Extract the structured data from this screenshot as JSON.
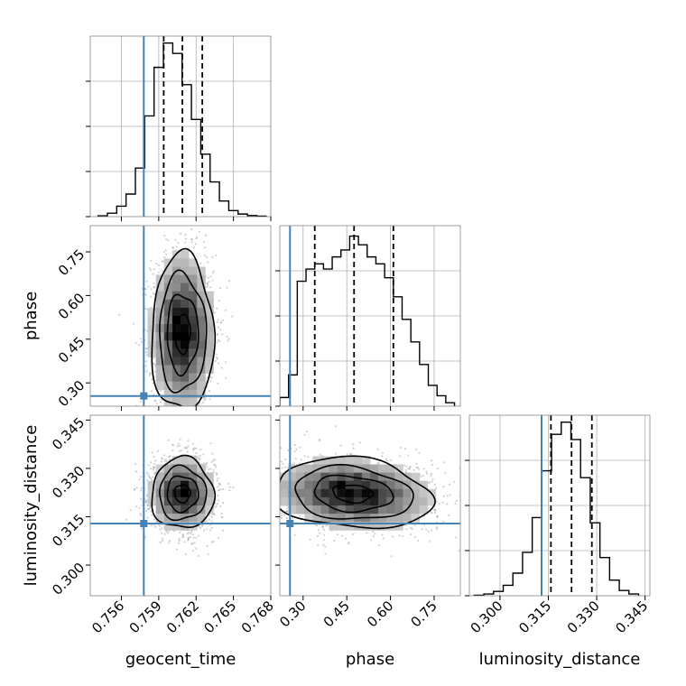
{
  "chart_data": {
    "type": "corner",
    "parameters": [
      {
        "name": "geocent_time",
        "label": "geocent_time",
        "lim": [
          0.7535,
          0.768
        ],
        "ticks": [
          "0.756",
          "0.759",
          "0.762",
          "0.765",
          "0.768"
        ],
        "truth": 0.7578,
        "quantiles": [
          0.7594,
          0.7609,
          0.7625
        ]
      },
      {
        "name": "phase",
        "label": "phase",
        "lim": [
          0.22,
          0.84
        ],
        "ticks": [
          "0.30",
          "0.45",
          "0.60",
          "0.75"
        ],
        "truth": 0.255,
        "quantiles": [
          0.34,
          0.475,
          0.61
        ]
      },
      {
        "name": "luminosity_distance",
        "label": "luminosity_distance",
        "lim": [
          0.2905,
          0.3465
        ],
        "ticks": [
          "0.300",
          "0.315",
          "0.330",
          "0.345"
        ],
        "truth": 0.3129,
        "quantiles": [
          0.3158,
          0.3222,
          0.3285
        ]
      }
    ],
    "histograms": {
      "geocent_time": {
        "x": [
          0.7545,
          0.75525,
          0.756,
          0.75675,
          0.7575,
          0.75825,
          0.759,
          0.75975,
          0.7605,
          0.76125,
          0.762,
          0.76275,
          0.7635,
          0.76425,
          0.765,
          0.76575,
          0.7665,
          0.76725
        ],
        "counts": [
          0.005,
          0.02,
          0.06,
          0.13,
          0.28,
          0.58,
          0.86,
          1.0,
          0.94,
          0.76,
          0.56,
          0.36,
          0.2,
          0.09,
          0.035,
          0.015,
          0.006,
          0.003
        ]
      },
      "phase": {
        "x": [
          0.235,
          0.265,
          0.295,
          0.325,
          0.355,
          0.385,
          0.415,
          0.445,
          0.475,
          0.505,
          0.535,
          0.565,
          0.595,
          0.625,
          0.655,
          0.685,
          0.715,
          0.745,
          0.775,
          0.805
        ],
        "counts": [
          0.05,
          0.18,
          0.72,
          0.79,
          0.82,
          0.79,
          0.86,
          0.9,
          0.98,
          0.93,
          0.86,
          0.82,
          0.74,
          0.63,
          0.5,
          0.37,
          0.24,
          0.12,
          0.06,
          0.02
        ]
      },
      "luminosity_distance": {
        "x": [
          0.2935,
          0.2965,
          0.2995,
          0.3025,
          0.3055,
          0.3085,
          0.3115,
          0.3145,
          0.3175,
          0.3205,
          0.3235,
          0.3265,
          0.3295,
          0.3325,
          0.3355,
          0.3385,
          0.3415
        ],
        "counts": [
          0.003,
          0.01,
          0.025,
          0.06,
          0.13,
          0.25,
          0.45,
          0.72,
          0.93,
          1.0,
          0.9,
          0.68,
          0.42,
          0.22,
          0.09,
          0.03,
          0.01
        ]
      }
    },
    "gaussian_2d": {
      "geocent_time": {
        "mean": 0.7609,
        "sd": 0.00125
      },
      "phase": {
        "mean": 0.47,
        "sd": 0.135
      },
      "luminosity_distance": {
        "mean": 0.3222,
        "sd": 0.0055
      },
      "correlation": {
        "geocent_time__phase": 0.0,
        "geocent_time__luminosity_distance": 0.0,
        "phase__luminosity_distance": -0.15
      }
    },
    "contour_levels": [
      "0.5 sigma",
      "1 sigma",
      "1.5 sigma",
      "2 sigma"
    ],
    "grid": true,
    "colors": {
      "truth": "#4682b4",
      "hist": "#000000",
      "quantile": "#000000",
      "points": "#9a9a9a",
      "density_max": "#000000"
    }
  }
}
